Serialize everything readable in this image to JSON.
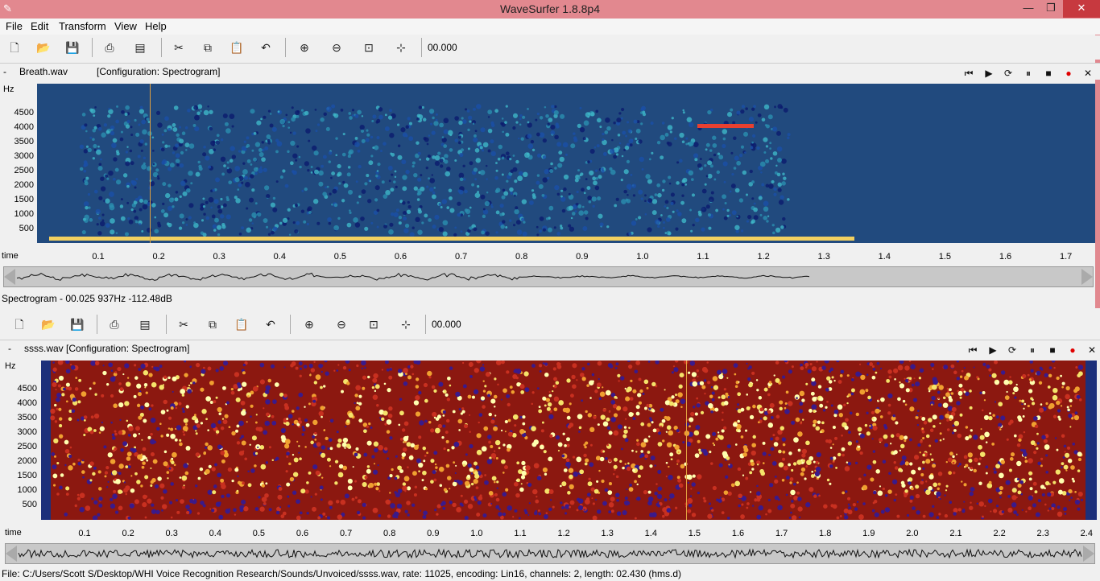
{
  "window": {
    "title": "WaveSurfer 1.8.8p4",
    "controls": [
      "minimize-icon",
      "restore-icon",
      "close-icon"
    ]
  },
  "menu": [
    "File",
    "Edit",
    "Transform",
    "View",
    "Help"
  ],
  "toolbar_icons": [
    "new-file-icon",
    "open-folder-icon",
    "save-icon",
    "print-icon",
    "properties-icon",
    "cut-icon",
    "copy-icon",
    "paste-icon",
    "undo-icon",
    "zoom-in-icon",
    "zoom-out-icon",
    "zoom-fit-icon",
    "zoom-selection-icon"
  ],
  "pane1": {
    "collapse": "-",
    "filename": "Breath.wav",
    "config": "[Configuration: Spectrogram]",
    "time_readout": "00.000",
    "y_unit": "Hz",
    "y_ticks": [
      "4500",
      "4000",
      "3500",
      "3000",
      "2500",
      "2000",
      "1500",
      "1000",
      "500"
    ],
    "time_label": "time",
    "time_ticks": [
      "0.1",
      "0.2",
      "0.3",
      "0.4",
      "0.5",
      "0.6",
      "0.7",
      "0.8",
      "0.9",
      "1.0",
      "1.1",
      "1.2",
      "1.3",
      "1.4",
      "1.5",
      "1.6",
      "1.7"
    ],
    "status": "Spectrogram - 00.025 937Hz -112.48dB"
  },
  "pane2": {
    "collapse": "-",
    "header": "ssss.wav [Configuration: Spectrogram]",
    "time_readout": "00.000",
    "y_unit": "Hz",
    "y_ticks": [
      "4500",
      "4000",
      "3500",
      "3000",
      "2500",
      "2000",
      "1500",
      "1000",
      "500"
    ],
    "time_label": "time",
    "time_ticks": [
      "0.1",
      "0.2",
      "0.3",
      "0.4",
      "0.5",
      "0.6",
      "0.7",
      "0.8",
      "0.9",
      "1.0",
      "1.1",
      "1.2",
      "1.3",
      "1.4",
      "1.5",
      "1.6",
      "1.7",
      "1.8",
      "1.9",
      "2.0",
      "2.1",
      "2.2",
      "2.3",
      "2.4"
    ],
    "status": "File: C:/Users/Scott S/Desktop/WHI Voice Recognition Research/Sounds/Unvoiced/ssss.wav, rate: 11025, encoding: Lin16, channels: 2, length: 02.430 (hms.d)"
  },
  "playback_icons": [
    "skip-start-icon",
    "play-icon",
    "play-loop-icon",
    "pause-icon",
    "stop-icon",
    "record-icon",
    "close-pane-icon"
  ],
  "colors": {
    "spectro_bg": "#214a7e",
    "titlebar": "#e2888f",
    "cursor": "#e0a040"
  }
}
